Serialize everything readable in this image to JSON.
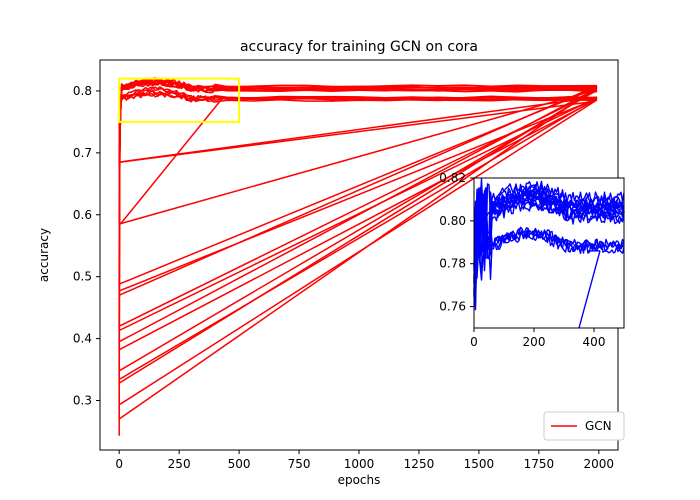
{
  "chart_data": [
    {
      "type": "line",
      "title": "accuracy for training GCN on cora",
      "xlabel": "epochs",
      "ylabel": "accuracy",
      "xlim": [
        -80,
        2080
      ],
      "ylim": [
        0.22,
        0.85
      ],
      "xticks": [
        0,
        250,
        500,
        750,
        1000,
        1250,
        1500,
        1750,
        2000
      ],
      "xtick_labels": [
        "0",
        "250",
        "500",
        "750",
        "1000",
        "1250",
        "1500",
        "1750",
        "2000"
      ],
      "yticks": [
        0.3,
        0.4,
        0.5,
        0.6,
        0.7,
        0.8
      ],
      "ytick_labels": [
        "0.3",
        "0.4",
        "0.5",
        "0.6",
        "0.7",
        "0.8"
      ],
      "grid": false,
      "legend": {
        "position": "lower-right",
        "entries": [
          "GCN"
        ]
      },
      "series": [
        {
          "name": "GCN",
          "color": "#ff0000",
          "runs": [
            {
              "start": 0.243,
              "plateau": 0.806
            },
            {
              "start": 0.27,
              "plateau": 0.785
            },
            {
              "start": 0.293,
              "plateau": 0.803
            },
            {
              "start": 0.328,
              "plateau": 0.788
            },
            {
              "start": 0.334,
              "plateau": 0.801
            },
            {
              "start": 0.348,
              "plateau": 0.786
            },
            {
              "start": 0.382,
              "plateau": 0.804
            },
            {
              "start": 0.395,
              "plateau": 0.789
            },
            {
              "start": 0.413,
              "plateau": 0.8
            },
            {
              "start": 0.42,
              "plateau": 0.808
            },
            {
              "start": 0.47,
              "plateau": 0.787
            },
            {
              "start": 0.477,
              "plateau": 0.805
            },
            {
              "start": 0.488,
              "plateau": 0.802
            },
            {
              "start": 0.585,
              "plateau": 0.79
            },
            {
              "start": 0.685,
              "plateau": 0.806
            }
          ],
          "connectors": [
            {
              "from": [
                5,
                0.585
              ],
              "to": [
                430,
                0.788
              ]
            },
            {
              "from": [
                5,
                0.685
              ],
              "to": [
                1960,
                0.782
              ]
            }
          ],
          "highlight_box": {
            "x": [
              0,
              500
            ],
            "y": [
              0.75,
              0.82
            ],
            "color": "#ffff00"
          }
        }
      ]
    },
    {
      "type": "line",
      "title": "",
      "xlabel": "",
      "ylabel": "",
      "xlim": [
        0,
        500
      ],
      "ylim": [
        0.75,
        0.82
      ],
      "xticks": [
        0,
        200,
        400
      ],
      "xtick_labels": [
        "0",
        "200",
        "400"
      ],
      "yticks": [
        0.76,
        0.78,
        0.8,
        0.82
      ],
      "ytick_labels": [
        "0.76",
        "0.78",
        "0.80",
        "0.82"
      ],
      "grid": false,
      "series": [
        {
          "name": "",
          "color": "#0000ff",
          "plateaus": [
            0.808,
            0.806,
            0.804,
            0.802,
            0.809,
            0.811,
            0.805,
            0.803,
            0.807,
            0.801,
            0.789,
            0.788,
            0.787,
            0.789,
            0.806
          ],
          "connector": {
            "from": [
              420,
              0.786
            ],
            "to": [
              350,
              0.75
            ]
          }
        }
      ]
    }
  ]
}
